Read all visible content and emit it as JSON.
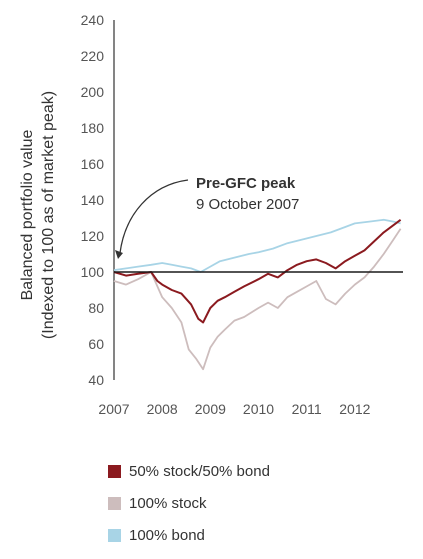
{
  "chart_data": {
    "type": "line",
    "ylabel_line1": "Balanced portfolio value",
    "ylabel_line2": "(Indexed to 100 as of market peak)",
    "ylim": [
      40,
      240
    ],
    "yticks": [
      "240",
      "220",
      "200",
      "180",
      "160",
      "140",
      "120",
      "100",
      "80",
      "60",
      "40"
    ],
    "xlim": [
      2007,
      2013
    ],
    "xticks": [
      "2007",
      "2008",
      "2009",
      "2010",
      "2011",
      "2012"
    ],
    "reference_line": 100,
    "annotation": {
      "title": "Pre-GFC peak",
      "subtitle": "9 October 2007"
    },
    "series": [
      {
        "name": "50% stock/50% bond",
        "color": "#8b1a1f",
        "x": [
          2007.0,
          2007.25,
          2007.5,
          2007.77,
          2007.9,
          2008.0,
          2008.2,
          2008.4,
          2008.6,
          2008.75,
          2008.85,
          2009.0,
          2009.15,
          2009.3,
          2009.5,
          2009.7,
          2010.0,
          2010.2,
          2010.4,
          2010.6,
          2010.8,
          2011.0,
          2011.2,
          2011.4,
          2011.6,
          2011.8,
          2012.0,
          2012.2,
          2012.4,
          2012.6,
          2012.8,
          2012.95
        ],
        "values": [
          100,
          98,
          99,
          100,
          95,
          93,
          90,
          88,
          82,
          74,
          72,
          80,
          84,
          86,
          89,
          92,
          96,
          99,
          97,
          101,
          104,
          106,
          107,
          105,
          102,
          106,
          109,
          112,
          117,
          122,
          126,
          129
        ]
      },
      {
        "name": "100% stock",
        "color": "#cdbdbd",
        "x": [
          2007.0,
          2007.25,
          2007.5,
          2007.77,
          2007.9,
          2008.0,
          2008.2,
          2008.4,
          2008.55,
          2008.7,
          2008.85,
          2009.0,
          2009.15,
          2009.3,
          2009.5,
          2009.7,
          2010.0,
          2010.2,
          2010.4,
          2010.6,
          2010.8,
          2011.0,
          2011.2,
          2011.4,
          2011.6,
          2011.8,
          2012.0,
          2012.2,
          2012.4,
          2012.6,
          2012.8,
          2012.95
        ],
        "values": [
          95,
          93,
          96,
          100,
          92,
          86,
          80,
          72,
          57,
          52,
          46,
          58,
          64,
          68,
          73,
          75,
          80,
          83,
          80,
          86,
          89,
          92,
          95,
          85,
          82,
          88,
          93,
          97,
          103,
          110,
          118,
          124
        ]
      },
      {
        "name": "100% bond",
        "color": "#a8d4e6",
        "x": [
          2007.0,
          2007.25,
          2007.5,
          2007.77,
          2008.0,
          2008.2,
          2008.4,
          2008.6,
          2008.8,
          2009.0,
          2009.2,
          2009.5,
          2009.8,
          2010.0,
          2010.3,
          2010.6,
          2010.9,
          2011.2,
          2011.5,
          2011.8,
          2012.0,
          2012.3,
          2012.6,
          2012.8,
          2012.95
        ],
        "values": [
          101,
          102,
          103,
          104,
          105,
          104,
          103,
          102,
          100,
          103,
          106,
          108,
          110,
          111,
          113,
          116,
          118,
          120,
          122,
          125,
          127,
          128,
          129,
          128,
          127
        ]
      }
    ]
  }
}
